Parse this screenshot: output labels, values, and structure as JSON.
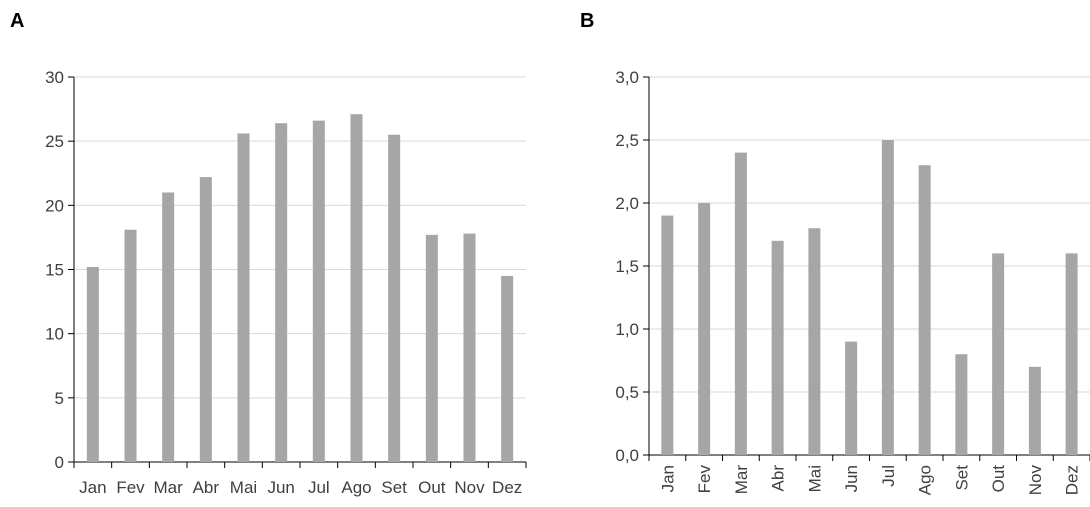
{
  "panels": {
    "a_label": "A",
    "b_label": "B"
  },
  "chart_data": [
    {
      "type": "bar",
      "categories": [
        "Jan",
        "Fev",
        "Mar",
        "Abr",
        "Mai",
        "Jun",
        "Jul",
        "Ago",
        "Set",
        "Out",
        "Nov",
        "Dez"
      ],
      "values": [
        15.2,
        18.1,
        21.0,
        22.2,
        25.6,
        26.4,
        26.6,
        27.1,
        25.5,
        17.7,
        17.8,
        14.5
      ],
      "yticks": [
        "0",
        "5",
        "10",
        "15",
        "20",
        "25",
        "30"
      ],
      "ylim": [
        0,
        30
      ],
      "grid": true,
      "bar_color": "#a6a6a6",
      "title": "",
      "xlabel": "",
      "ylabel": ""
    },
    {
      "type": "bar",
      "categories": [
        "Jan",
        "Fev",
        "Mar",
        "Abr",
        "Mai",
        "Jun",
        "Jul",
        "Ago",
        "Set",
        "Out",
        "Nov",
        "Dez"
      ],
      "values": [
        1.9,
        2.0,
        2.4,
        1.7,
        1.8,
        0.9,
        2.5,
        2.3,
        0.8,
        1.6,
        0.7,
        1.6
      ],
      "yticks": [
        "0,0",
        "0,5",
        "1,0",
        "1,5",
        "2,0",
        "2,5",
        "3,0"
      ],
      "ylim": [
        0,
        3
      ],
      "grid": true,
      "bar_color": "#a6a6a6",
      "title": "",
      "xlabel": "",
      "ylabel": ""
    }
  ]
}
